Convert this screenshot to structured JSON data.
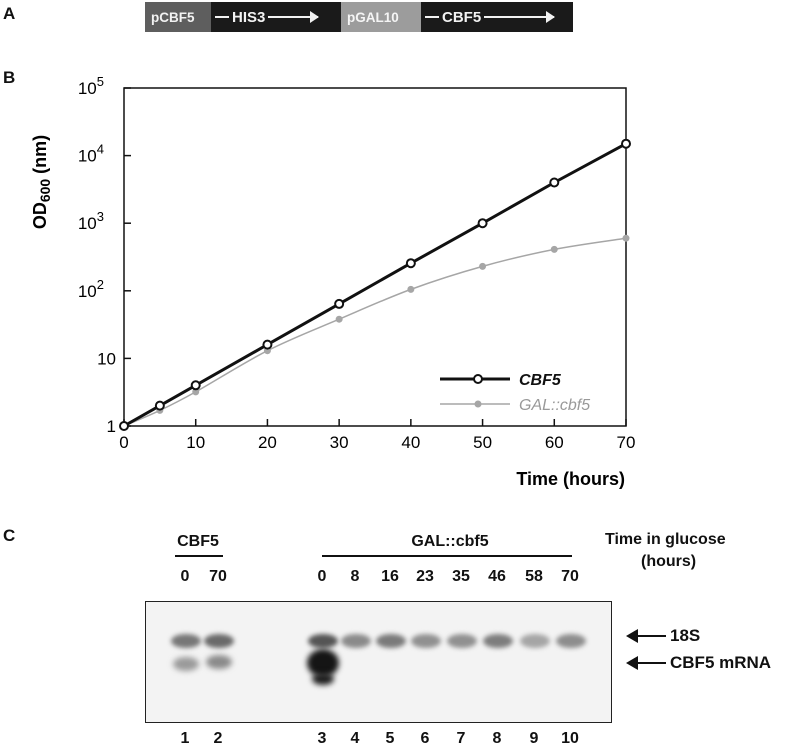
{
  "panels": {
    "a": "A",
    "b": "B",
    "c": "C"
  },
  "construct": {
    "promoter1": "pCBF5",
    "gene1": "HIS3",
    "promoter2": "pGAL10",
    "gene2": "CBF5"
  },
  "chart_data": {
    "type": "line",
    "title": "",
    "xlabel": "Time (hours)",
    "ylabel": "OD600 (nm)",
    "ylabel_main": "OD",
    "ylabel_sub": "600",
    "ylabel_unit": " (nm)",
    "xlim": [
      0,
      70
    ],
    "ylim": [
      1,
      100000
    ],
    "yscale": "log",
    "xticks": [
      0,
      10,
      20,
      30,
      40,
      50,
      60,
      70
    ],
    "yticks": [
      {
        "value": 1,
        "label": "1"
      },
      {
        "value": 10,
        "label": "10"
      },
      {
        "value": 100,
        "label": "10",
        "exp": "2"
      },
      {
        "value": 1000,
        "label": "10",
        "exp": "3"
      },
      {
        "value": 10000,
        "label": "10",
        "exp": "4"
      },
      {
        "value": 100000,
        "label": "10",
        "exp": "5"
      }
    ],
    "grid": false,
    "legend_position": "bottom-right",
    "series": [
      {
        "name": "CBF5",
        "color": "#111111",
        "marker": "open-circle",
        "x": [
          0,
          5,
          10,
          20,
          30,
          40,
          50,
          60,
          70
        ],
        "y": [
          1,
          2,
          4,
          16,
          64,
          256,
          1000,
          4000,
          15000
        ]
      },
      {
        "name": "GAL::cbf5",
        "color": "#a6a6a6",
        "marker": "filled-circle",
        "x": [
          0,
          5,
          10,
          20,
          30,
          40,
          50,
          60,
          70
        ],
        "y": [
          1,
          1.7,
          3.2,
          13,
          38,
          105,
          230,
          410,
          600
        ]
      }
    ]
  },
  "northern": {
    "group1_label": "CBF5",
    "group2_label": "GAL::cbf5",
    "time_label_line1": "Time in glucose",
    "time_label_line2": "(hours)",
    "times": [
      "0",
      "70",
      "0",
      "8",
      "16",
      "23",
      "35",
      "46",
      "58",
      "70"
    ],
    "lanes": [
      "1",
      "2",
      "3",
      "4",
      "5",
      "6",
      "7",
      "8",
      "9",
      "10"
    ],
    "marker_18s": "18S",
    "marker_mrna": "CBF5 mRNA"
  }
}
